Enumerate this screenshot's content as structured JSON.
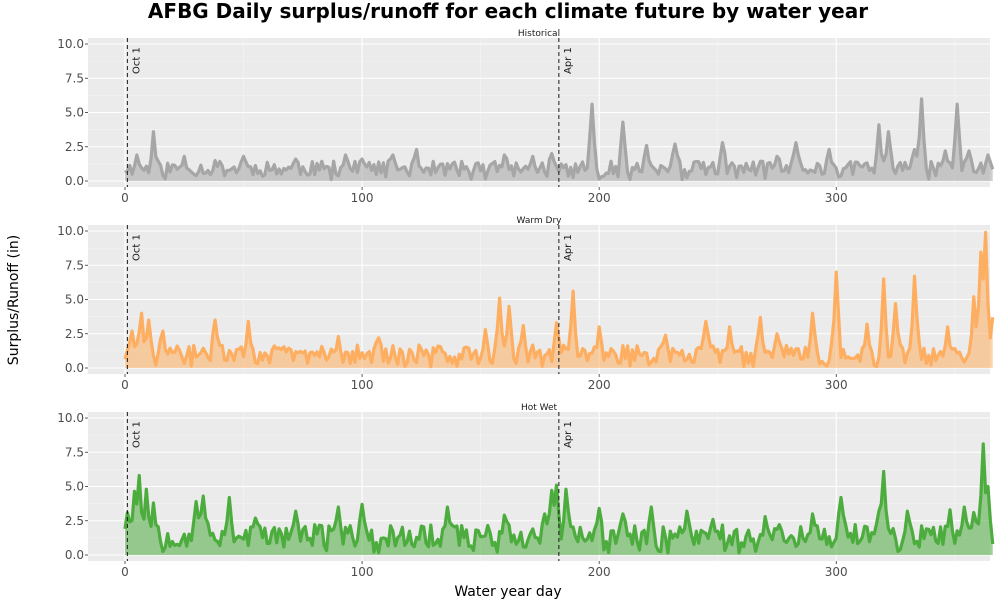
{
  "chart_data": {
    "type": "line",
    "title": "AFBG Daily surplus/runoff for each climate future by water year",
    "xlabel": "Water year day",
    "ylabel": "Surplus/Runoff (in)",
    "xlim": [
      0,
      366
    ],
    "ylim": [
      0,
      10
    ],
    "x_ticks": [
      0,
      100,
      200,
      300
    ],
    "y_ticks": [
      0.0,
      2.5,
      5.0,
      7.5,
      10.0
    ],
    "y_tick_labels": [
      "0.0",
      "2.5",
      "5.0",
      "7.5",
      "10.0"
    ],
    "annotations": [
      {
        "label": "Oct 1",
        "x": 1
      },
      {
        "label": "Apr 1",
        "x": 183
      }
    ],
    "series": [
      {
        "name": "Historical",
        "color": "#a6a6a6",
        "base": 0.9,
        "amp": 0.55,
        "seed": 11,
        "peaks": [
          [
            5,
            1.9
          ],
          [
            12,
            3.6
          ],
          [
            25,
            1.8
          ],
          [
            38,
            1.5
          ],
          [
            50,
            1.8
          ],
          [
            72,
            1.6
          ],
          [
            93,
            1.9
          ],
          [
            100,
            1.6
          ],
          [
            113,
            1.9
          ],
          [
            123,
            2.3
          ],
          [
            160,
            1.9
          ],
          [
            172,
            1.8
          ],
          [
            180,
            2.0
          ],
          [
            197,
            5.6
          ],
          [
            210,
            4.3
          ],
          [
            220,
            2.6
          ],
          [
            232,
            2.7
          ],
          [
            252,
            2.8
          ],
          [
            275,
            1.8
          ],
          [
            283,
            2.8
          ],
          [
            297,
            2.3
          ],
          [
            318,
            4.1
          ],
          [
            322,
            3.6
          ],
          [
            333,
            2.3
          ],
          [
            336,
            6.0
          ],
          [
            346,
            2.2
          ],
          [
            351,
            5.6
          ],
          [
            356,
            2.2
          ],
          [
            364,
            1.9
          ]
        ]
      },
      {
        "name": "Warm Dry",
        "color": "#fdae61",
        "base": 1.0,
        "amp": 0.7,
        "seed": 29,
        "peaks": [
          [
            3,
            2.7
          ],
          [
            7,
            4.0
          ],
          [
            10,
            3.5
          ],
          [
            16,
            2.7
          ],
          [
            38,
            3.5
          ],
          [
            52,
            3.4
          ],
          [
            90,
            2.3
          ],
          [
            107,
            2.2
          ],
          [
            152,
            2.8
          ],
          [
            158,
            5.1
          ],
          [
            162,
            4.5
          ],
          [
            168,
            3.1
          ],
          [
            182,
            3.3
          ],
          [
            189,
            5.6
          ],
          [
            200,
            3.0
          ],
          [
            228,
            2.4
          ],
          [
            245,
            3.4
          ],
          [
            255,
            3.0
          ],
          [
            268,
            3.7
          ],
          [
            275,
            2.5
          ],
          [
            290,
            4.0
          ],
          [
            300,
            7.0
          ],
          [
            313,
            3.2
          ],
          [
            320,
            6.5
          ],
          [
            325,
            4.7
          ],
          [
            333,
            6.7
          ],
          [
            347,
            3.0
          ],
          [
            358,
            5.2
          ],
          [
            361,
            8.4
          ],
          [
            363,
            9.9
          ],
          [
            366,
            3.7
          ]
        ]
      },
      {
        "name": "Hot Wet",
        "color": "#4dac3e",
        "base": 1.4,
        "amp": 0.85,
        "seed": 53,
        "peaks": [
          [
            1,
            3.1
          ],
          [
            4,
            4.6
          ],
          [
            6,
            5.8
          ],
          [
            9,
            4.8
          ],
          [
            12,
            3.8
          ],
          [
            30,
            3.9
          ],
          [
            33,
            4.3
          ],
          [
            44,
            4.2
          ],
          [
            55,
            2.7
          ],
          [
            72,
            3.2
          ],
          [
            90,
            3.5
          ],
          [
            100,
            3.7
          ],
          [
            136,
            3.5
          ],
          [
            160,
            2.9
          ],
          [
            177,
            3.0
          ],
          [
            180,
            4.7
          ],
          [
            182,
            5.1
          ],
          [
            186,
            4.8
          ],
          [
            200,
            3.4
          ],
          [
            210,
            3.0
          ],
          [
            222,
            3.5
          ],
          [
            237,
            3.2
          ],
          [
            248,
            2.6
          ],
          [
            270,
            2.8
          ],
          [
            290,
            3.0
          ],
          [
            302,
            4.2
          ],
          [
            318,
            3.1
          ],
          [
            320,
            6.1
          ],
          [
            330,
            3.2
          ],
          [
            348,
            3.3
          ],
          [
            354,
            3.5
          ],
          [
            358,
            3.1
          ],
          [
            362,
            8.1
          ],
          [
            364,
            5.0
          ]
        ]
      }
    ]
  }
}
